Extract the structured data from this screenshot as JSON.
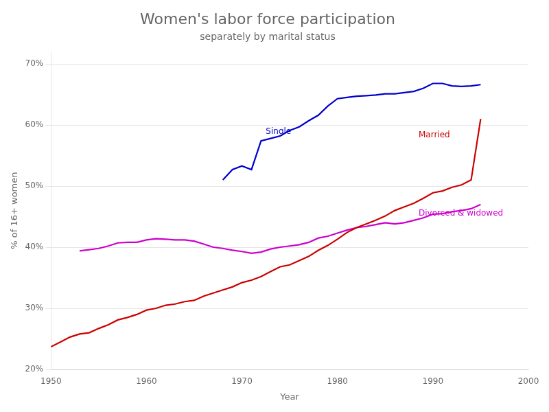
{
  "chart_data": {
    "type": "line",
    "title": "Women's labor force participation",
    "subtitle": "separately by marital status",
    "xlabel": "Year",
    "ylabel": "% of 16+ women",
    "xlim": [
      1950,
      2000
    ],
    "ylim": [
      0.2,
      0.72
    ],
    "xticks": [
      1950,
      1960,
      1970,
      1980,
      1990,
      2000
    ],
    "yticks": [
      {
        "value": 0.2,
        "label": "20%"
      },
      {
        "value": 0.3,
        "label": "30%"
      },
      {
        "value": 0.4,
        "label": "40%"
      },
      {
        "value": 0.5,
        "label": "50%"
      },
      {
        "value": 0.6,
        "label": "60%"
      },
      {
        "value": 0.7,
        "label": "70%"
      }
    ],
    "grid": "y",
    "series": [
      {
        "color": "#0000cc",
        "x": [
          1968,
          1969,
          1970,
          1971,
          1972,
          1973,
          1974,
          1975,
          1976,
          1977,
          1978,
          1979,
          1980,
          1981,
          1982,
          1983,
          1984,
          1985,
          1986,
          1987,
          1988,
          1989,
          1990,
          1991,
          1992,
          1993,
          1994,
          1995
        ],
        "values": [
          0.51,
          0.527,
          0.533,
          0.527,
          0.574,
          0.578,
          0.582,
          0.591,
          0.597,
          0.607,
          0.616,
          0.631,
          0.643,
          0.645,
          0.647,
          0.648,
          0.649,
          0.651,
          0.651,
          0.653,
          0.655,
          0.66,
          0.668,
          0.668,
          0.664,
          0.663,
          0.664,
          0.666
        ]
      },
      {
        "color": "#cc0000",
        "x": [
          1950,
          1951,
          1952,
          1953,
          1954,
          1955,
          1956,
          1957,
          1958,
          1959,
          1960,
          1961,
          1962,
          1963,
          1964,
          1965,
          1966,
          1967,
          1968,
          1969,
          1970,
          1971,
          1972,
          1973,
          1974,
          1975,
          1976,
          1977,
          1978,
          1979,
          1980,
          1981,
          1982,
          1983,
          1984,
          1985,
          1986,
          1987,
          1988,
          1989,
          1990,
          1991,
          1992,
          1993,
          1994,
          1995
        ],
        "values": [
          0.237,
          0.245,
          0.253,
          0.258,
          0.26,
          0.267,
          0.273,
          0.281,
          0.285,
          0.29,
          0.297,
          0.3,
          0.305,
          0.307,
          0.311,
          0.313,
          0.32,
          0.325,
          0.33,
          0.335,
          0.342,
          0.346,
          0.352,
          0.36,
          0.368,
          0.371,
          0.378,
          0.385,
          0.395,
          0.403,
          0.413,
          0.424,
          0.432,
          0.438,
          0.444,
          0.451,
          0.46,
          0.466,
          0.472,
          0.48,
          0.489,
          0.492,
          0.498,
          0.502,
          0.51,
          0.61
        ]
      },
      {
        "color": "#cc00cc",
        "x": [
          1953,
          1954,
          1955,
          1956,
          1957,
          1958,
          1959,
          1960,
          1961,
          1962,
          1963,
          1964,
          1965,
          1966,
          1967,
          1968,
          1969,
          1970,
          1971,
          1972,
          1973,
          1974,
          1975,
          1976,
          1977,
          1978,
          1979,
          1980,
          1981,
          1982,
          1983,
          1984,
          1985,
          1986,
          1987,
          1988,
          1989,
          1990,
          1991,
          1992,
          1993,
          1994,
          1995
        ],
        "values": [
          0.394,
          0.396,
          0.398,
          0.402,
          0.407,
          0.408,
          0.408,
          0.412,
          0.414,
          0.413,
          0.412,
          0.412,
          0.41,
          0.405,
          0.4,
          0.398,
          0.395,
          0.393,
          0.39,
          0.392,
          0.397,
          0.4,
          0.402,
          0.404,
          0.408,
          0.415,
          0.418,
          0.423,
          0.428,
          0.432,
          0.434,
          0.437,
          0.44,
          0.438,
          0.44,
          0.444,
          0.448,
          0.454,
          0.455,
          0.458,
          0.46,
          0.463,
          0.47
        ]
      }
    ],
    "annotations": [
      {
        "text": "Single",
        "x": 1972.5,
        "y": 0.582,
        "color": "#0000cc"
      },
      {
        "text": "Married",
        "x": 1988.5,
        "y": 0.576,
        "color": "#cc0000"
      },
      {
        "text": "Divorced & widowed",
        "x": 1988.5,
        "y": 0.448,
        "color": "#cc00cc"
      }
    ]
  }
}
